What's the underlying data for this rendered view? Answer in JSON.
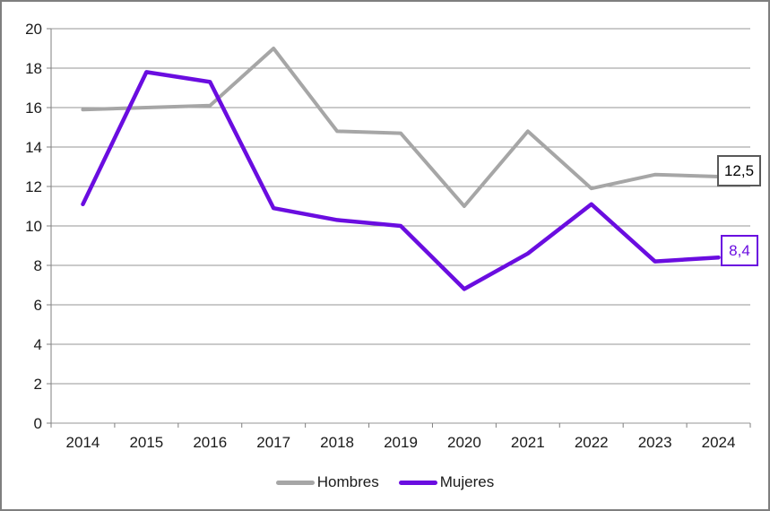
{
  "chart_data": {
    "type": "line",
    "categories": [
      "2014",
      "2015",
      "2016",
      "2017",
      "2018",
      "2019",
      "2020",
      "2021",
      "2022",
      "2023",
      "2024"
    ],
    "series": [
      {
        "name": "Hombres",
        "color": "#A6A6A6",
        "values": [
          15.9,
          16.0,
          16.1,
          19.0,
          14.8,
          14.7,
          11.0,
          14.8,
          11.9,
          12.6,
          12.5
        ],
        "end_label": "12,5"
      },
      {
        "name": "Mujeres",
        "color": "#6A0DE0",
        "values": [
          11.1,
          17.8,
          17.3,
          10.9,
          10.3,
          10.0,
          6.8,
          8.6,
          11.1,
          8.2,
          8.4
        ],
        "end_label": "8,4"
      }
    ],
    "ylim": [
      0,
      20
    ],
    "yticks": [
      0,
      2,
      4,
      6,
      8,
      10,
      12,
      14,
      16,
      18,
      20
    ],
    "grid": "horizontal",
    "legend_position": "bottom",
    "decimal_separator": ","
  },
  "colors": {
    "background": "#FFFFFF",
    "frame_border": "#7F7F7F",
    "gridline": "#969696",
    "axis": "#7F7F7F",
    "tick_text": "#1A1A1A",
    "hombres_label_border": "#595959",
    "hombres_label_text": "#000000",
    "mujeres_label_border": "#6A0DE0",
    "mujeres_label_text": "#6A0DE0"
  }
}
